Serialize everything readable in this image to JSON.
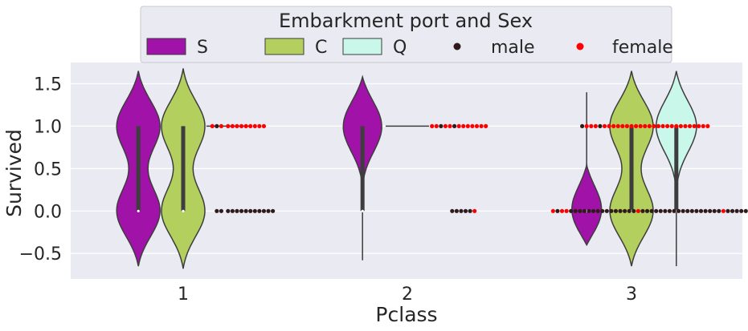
{
  "chart_data": {
    "type": "violin",
    "xlabel": "Pclass",
    "ylabel": "Survived",
    "categories": [
      "1",
      "2",
      "3"
    ],
    "ylim": [
      -0.8,
      1.75
    ],
    "yticks": [
      -0.5,
      0.0,
      0.5,
      1.0,
      1.5
    ],
    "ytick_labels": [
      "−0.5",
      "0.0",
      "0.5",
      "1.0",
      "1.5"
    ],
    "grid": true,
    "legend": {
      "title": "Embarkment port and Sex",
      "placement": "top-center",
      "ports": [
        {
          "label": "S",
          "color": "#a112a8"
        },
        {
          "label": "C",
          "color": "#b3cf5e"
        },
        {
          "label": "Q",
          "color": "#c9f7e9"
        }
      ],
      "sexes": [
        {
          "label": "male",
          "color": "#2f1b1b"
        },
        {
          "label": "female",
          "color": "#ff0000"
        }
      ]
    },
    "violins": [
      {
        "pclass": "1",
        "port": "S",
        "range": [
          -0.65,
          1.65
        ],
        "modes": [
          0,
          1
        ],
        "quartiles": [
          0,
          1
        ]
      },
      {
        "pclass": "1",
        "port": "C",
        "range": [
          -0.68,
          1.68
        ],
        "modes": [
          0,
          1
        ],
        "quartiles": [
          0,
          1
        ]
      },
      {
        "pclass": "1",
        "port": "Q",
        "constant": 1
      },
      {
        "pclass": "2",
        "port": "S",
        "range": [
          -0.58,
          1.58
        ],
        "modes": [
          1
        ],
        "quartiles": [
          0,
          1
        ]
      },
      {
        "pclass": "2",
        "port": "C",
        "constant": 1
      },
      {
        "pclass": "3",
        "port": "S",
        "range": [
          -0.4,
          1.4
        ],
        "modes": [
          0
        ],
        "quartiles": [
          0,
          0
        ]
      },
      {
        "pclass": "3",
        "port": "C",
        "range": [
          -0.65,
          1.65
        ],
        "modes": [
          0,
          1
        ],
        "quartiles": [
          0,
          1
        ]
      },
      {
        "pclass": "3",
        "port": "Q",
        "range": [
          -0.65,
          1.65
        ],
        "modes": [
          1
        ],
        "quartiles": [
          0,
          1
        ]
      }
    ],
    "swarm": [
      {
        "pclass": "1",
        "y": 1,
        "points": [
          {
            "x": 1.13,
            "sex": "female"
          },
          {
            "x": 1.15,
            "sex": "male"
          },
          {
            "x": 1.17,
            "sex": "female"
          },
          {
            "x": 1.2,
            "sex": "female"
          },
          {
            "x": 1.22,
            "sex": "female"
          },
          {
            "x": 1.24,
            "sex": "female"
          },
          {
            "x": 1.26,
            "sex": "female"
          },
          {
            "x": 1.28,
            "sex": "female"
          },
          {
            "x": 1.3,
            "sex": "female"
          },
          {
            "x": 1.32,
            "sex": "female"
          },
          {
            "x": 1.34,
            "sex": "female"
          },
          {
            "x": 1.36,
            "sex": "female"
          }
        ]
      },
      {
        "pclass": "1",
        "y": 0,
        "points": [
          {
            "x": 1.15,
            "sex": "male"
          },
          {
            "x": 1.17,
            "sex": "male"
          },
          {
            "x": 1.2,
            "sex": "male"
          },
          {
            "x": 1.22,
            "sex": "male"
          },
          {
            "x": 1.24,
            "sex": "male"
          },
          {
            "x": 1.26,
            "sex": "male"
          },
          {
            "x": 1.28,
            "sex": "male"
          },
          {
            "x": 1.3,
            "sex": "male"
          },
          {
            "x": 1.32,
            "sex": "male"
          },
          {
            "x": 1.34,
            "sex": "male"
          },
          {
            "x": 1.36,
            "sex": "male"
          },
          {
            "x": 1.38,
            "sex": "male"
          },
          {
            "x": 1.4,
            "sex": "male"
          }
        ]
      },
      {
        "pclass": "2",
        "y": 1,
        "points": [
          {
            "x": 2.11,
            "sex": "female"
          },
          {
            "x": 2.13,
            "sex": "female"
          },
          {
            "x": 2.15,
            "sex": "male"
          },
          {
            "x": 2.17,
            "sex": "female"
          },
          {
            "x": 2.19,
            "sex": "female"
          },
          {
            "x": 2.21,
            "sex": "male"
          },
          {
            "x": 2.23,
            "sex": "female"
          },
          {
            "x": 2.25,
            "sex": "female"
          },
          {
            "x": 2.27,
            "sex": "female"
          },
          {
            "x": 2.29,
            "sex": "female"
          },
          {
            "x": 2.31,
            "sex": "female"
          },
          {
            "x": 2.33,
            "sex": "female"
          },
          {
            "x": 2.35,
            "sex": "female"
          }
        ]
      },
      {
        "pclass": "2",
        "y": 0,
        "points": [
          {
            "x": 2.2,
            "sex": "male"
          },
          {
            "x": 2.22,
            "sex": "male"
          },
          {
            "x": 2.24,
            "sex": "male"
          },
          {
            "x": 2.26,
            "sex": "male"
          },
          {
            "x": 2.28,
            "sex": "male"
          },
          {
            "x": 2.3,
            "sex": "female"
          }
        ]
      },
      {
        "pclass": "3",
        "y": 1,
        "points": [
          {
            "x": 2.78,
            "sex": "male"
          },
          {
            "x": 2.8,
            "sex": "female"
          },
          {
            "x": 2.82,
            "sex": "female"
          },
          {
            "x": 2.84,
            "sex": "female"
          },
          {
            "x": 2.86,
            "sex": "male"
          },
          {
            "x": 2.88,
            "sex": "female"
          },
          {
            "x": 2.9,
            "sex": "female"
          },
          {
            "x": 2.92,
            "sex": "female"
          },
          {
            "x": 2.94,
            "sex": "female"
          },
          {
            "x": 2.96,
            "sex": "female"
          },
          {
            "x": 2.98,
            "sex": "female"
          },
          {
            "x": 3.0,
            "sex": "female"
          },
          {
            "x": 3.02,
            "sex": "female"
          },
          {
            "x": 3.04,
            "sex": "female"
          },
          {
            "x": 3.06,
            "sex": "female"
          },
          {
            "x": 3.08,
            "sex": "female"
          },
          {
            "x": 3.1,
            "sex": "female"
          },
          {
            "x": 3.12,
            "sex": "female"
          },
          {
            "x": 3.14,
            "sex": "female"
          },
          {
            "x": 3.16,
            "sex": "female"
          },
          {
            "x": 3.18,
            "sex": "female"
          },
          {
            "x": 3.2,
            "sex": "female"
          },
          {
            "x": 3.22,
            "sex": "female"
          },
          {
            "x": 3.24,
            "sex": "female"
          },
          {
            "x": 3.26,
            "sex": "female"
          },
          {
            "x": 3.28,
            "sex": "female"
          },
          {
            "x": 3.3,
            "sex": "female"
          },
          {
            "x": 3.32,
            "sex": "female"
          },
          {
            "x": 3.34,
            "sex": "female"
          }
        ]
      },
      {
        "pclass": "3",
        "y": 0,
        "points": [
          {
            "x": 2.65,
            "sex": "female"
          },
          {
            "x": 2.67,
            "sex": "male"
          },
          {
            "x": 2.69,
            "sex": "female"
          },
          {
            "x": 2.71,
            "sex": "female"
          },
          {
            "x": 2.73,
            "sex": "male"
          },
          {
            "x": 2.75,
            "sex": "male"
          },
          {
            "x": 2.77,
            "sex": "male"
          },
          {
            "x": 2.79,
            "sex": "male"
          },
          {
            "x": 2.81,
            "sex": "male"
          },
          {
            "x": 2.83,
            "sex": "male"
          },
          {
            "x": 2.85,
            "sex": "male"
          },
          {
            "x": 2.87,
            "sex": "male"
          },
          {
            "x": 2.89,
            "sex": "male"
          },
          {
            "x": 2.91,
            "sex": "male"
          },
          {
            "x": 2.93,
            "sex": "male"
          },
          {
            "x": 2.95,
            "sex": "male"
          },
          {
            "x": 2.97,
            "sex": "male"
          },
          {
            "x": 2.99,
            "sex": "male"
          },
          {
            "x": 3.01,
            "sex": "male"
          },
          {
            "x": 3.03,
            "sex": "female"
          },
          {
            "x": 3.05,
            "sex": "male"
          },
          {
            "x": 3.07,
            "sex": "male"
          },
          {
            "x": 3.09,
            "sex": "male"
          },
          {
            "x": 3.11,
            "sex": "male"
          },
          {
            "x": 3.13,
            "sex": "male"
          },
          {
            "x": 3.15,
            "sex": "male"
          },
          {
            "x": 3.17,
            "sex": "male"
          },
          {
            "x": 3.19,
            "sex": "male"
          },
          {
            "x": 3.21,
            "sex": "male"
          },
          {
            "x": 3.23,
            "sex": "male"
          },
          {
            "x": 3.25,
            "sex": "male"
          },
          {
            "x": 3.27,
            "sex": "male"
          },
          {
            "x": 3.29,
            "sex": "male"
          },
          {
            "x": 3.31,
            "sex": "male"
          },
          {
            "x": 3.33,
            "sex": "male"
          },
          {
            "x": 3.35,
            "sex": "male"
          },
          {
            "x": 3.37,
            "sex": "male"
          },
          {
            "x": 3.39,
            "sex": "male"
          },
          {
            "x": 3.41,
            "sex": "female"
          },
          {
            "x": 3.43,
            "sex": "male"
          },
          {
            "x": 3.45,
            "sex": "male"
          },
          {
            "x": 3.47,
            "sex": "male"
          },
          {
            "x": 3.49,
            "sex": "male"
          },
          {
            "x": 3.51,
            "sex": "male"
          },
          {
            "x": 3.53,
            "sex": "male"
          },
          {
            "x": 3.55,
            "sex": "male"
          },
          {
            "x": 3.57,
            "sex": "male"
          },
          {
            "x": 3.59,
            "sex": "female"
          },
          {
            "x": 3.61,
            "sex": "male"
          },
          {
            "x": 3.63,
            "sex": "male"
          }
        ]
      }
    ]
  }
}
